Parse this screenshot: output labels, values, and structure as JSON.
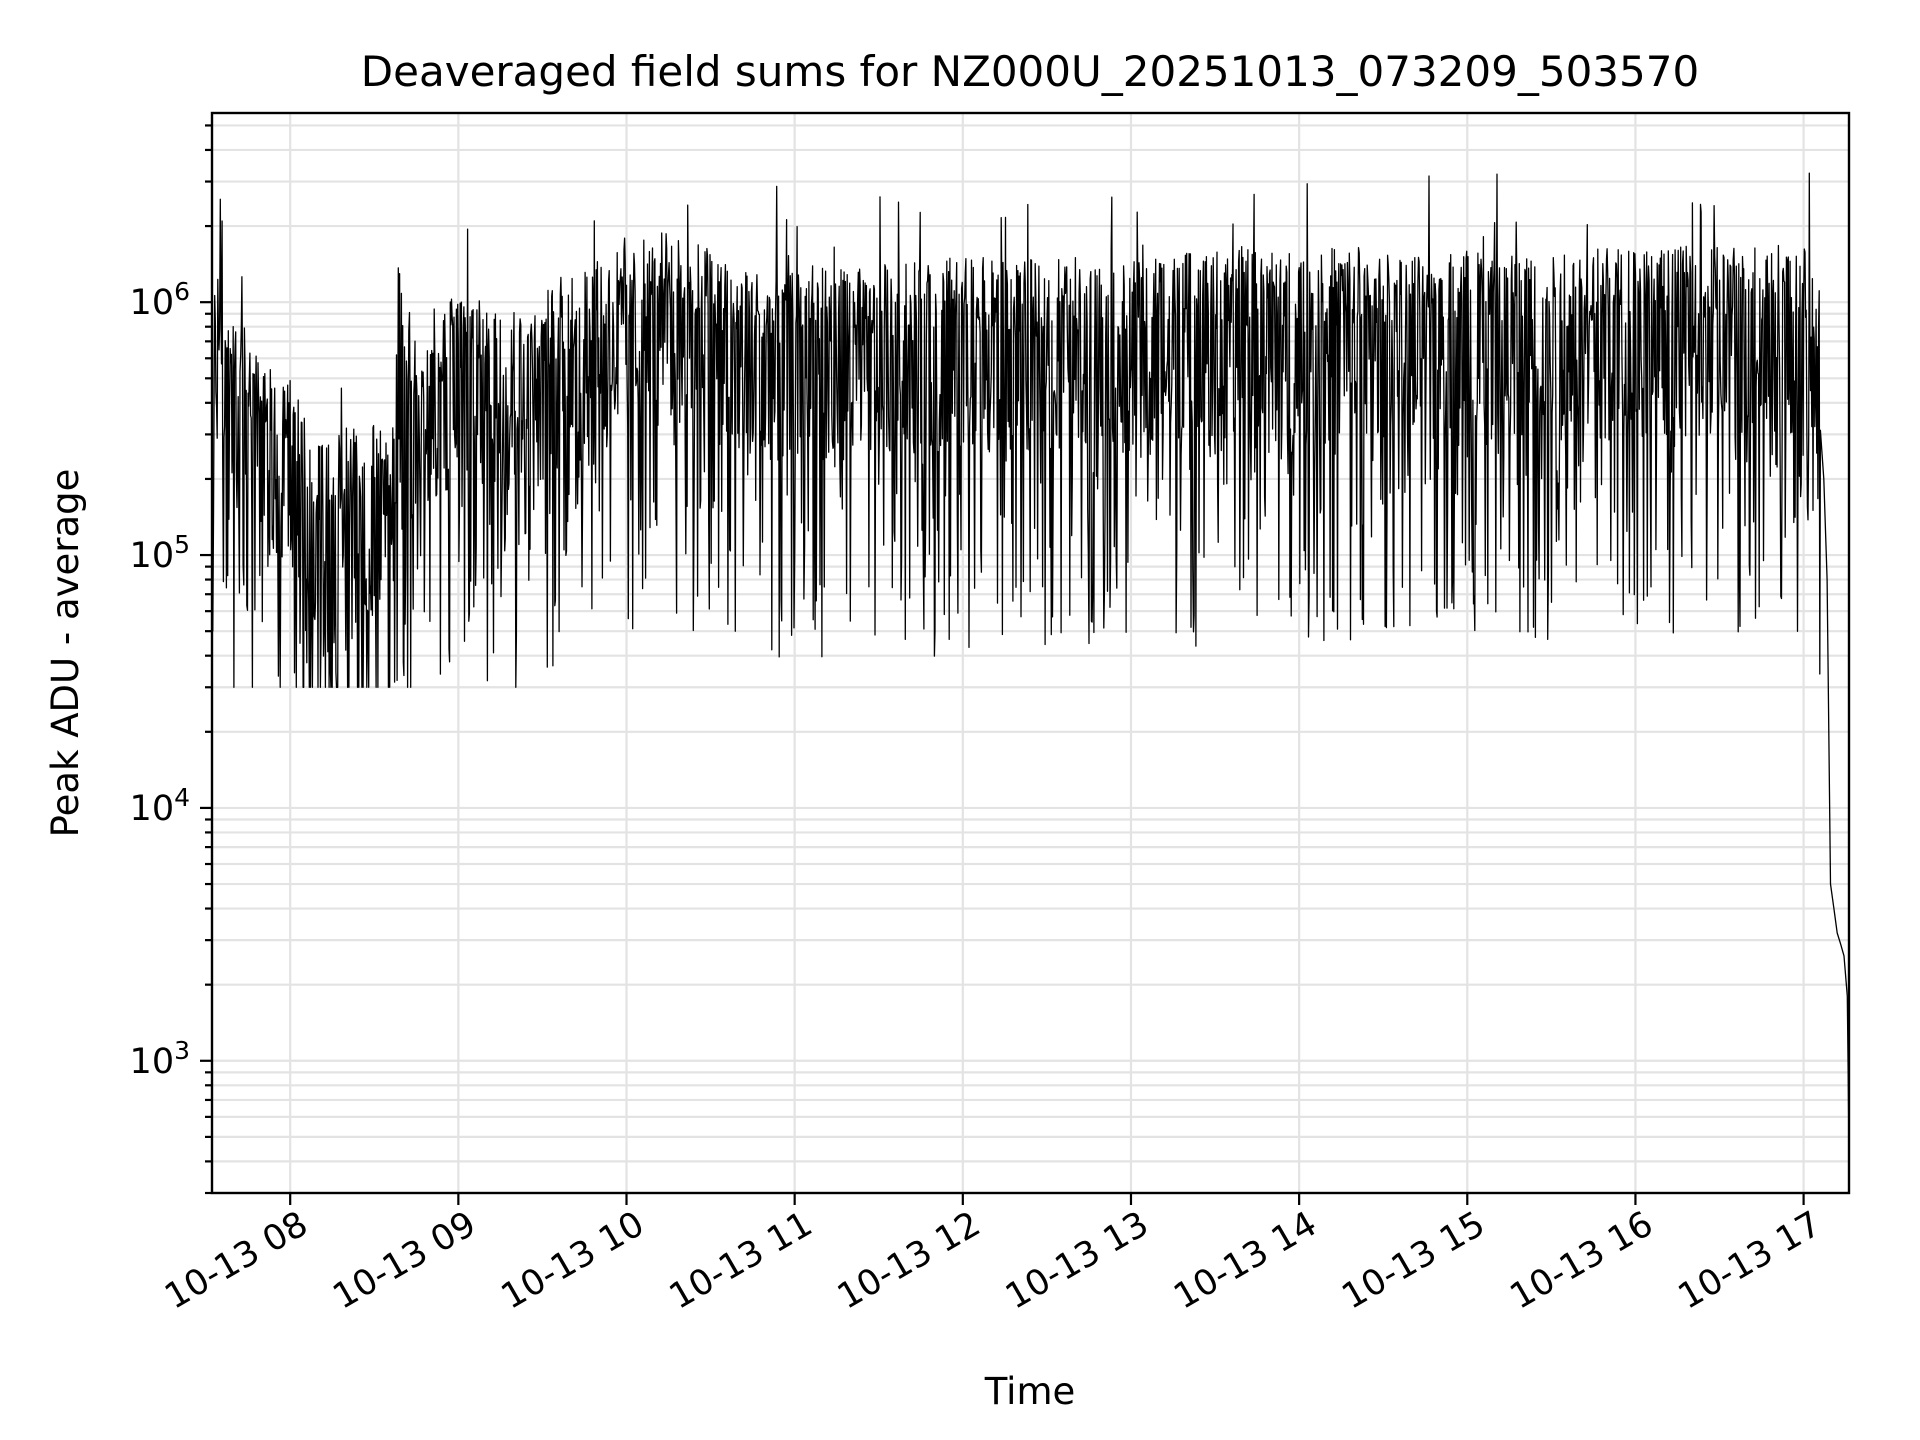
{
  "chart_data": {
    "type": "line",
    "title": "Deaveraged field sums for NZ000U_20251013_073209_503570",
    "xlabel": "Time",
    "ylabel": "Peak ADU - average",
    "yscale": "log",
    "ylim": [
      300,
      5600000
    ],
    "xlim_hours": [
      7.535,
      17.27
    ],
    "grid": true,
    "line_color": "#000000",
    "grid_color": "#e3e3e3",
    "x_ticks": [
      {
        "hour": 8,
        "label": "10-13 08"
      },
      {
        "hour": 9,
        "label": "10-13 09"
      },
      {
        "hour": 10,
        "label": "10-13 10"
      },
      {
        "hour": 11,
        "label": "10-13 11"
      },
      {
        "hour": 12,
        "label": "10-13 12"
      },
      {
        "hour": 13,
        "label": "10-13 13"
      },
      {
        "hour": 14,
        "label": "10-13 14"
      },
      {
        "hour": 15,
        "label": "10-13 15"
      },
      {
        "hour": 16,
        "label": "10-13 16"
      },
      {
        "hour": 17,
        "label": "10-13 17"
      }
    ],
    "y_ticks": [
      {
        "value": 1000,
        "base": "10",
        "exp": "3"
      },
      {
        "value": 10000,
        "base": "10",
        "exp": "4"
      },
      {
        "value": 100000,
        "base": "10",
        "exp": "5"
      },
      {
        "value": 1000000,
        "base": "10",
        "exp": "6"
      }
    ],
    "series": [
      {
        "name": "Peak ADU - average",
        "x_hours": [
          7.54,
          7.6,
          7.7,
          7.8,
          7.9,
          8.0,
          8.1,
          8.2,
          8.3,
          8.4,
          8.5,
          8.6,
          8.65,
          8.7,
          8.8,
          8.9,
          9.0,
          9.1,
          9.2,
          9.3,
          9.4,
          9.5,
          9.6,
          9.7,
          9.8,
          9.9,
          10.0,
          10.1,
          10.2,
          10.3,
          10.4,
          10.5,
          10.6,
          10.7,
          10.8,
          10.9,
          11.0,
          11.2,
          11.4,
          11.6,
          11.8,
          12.0,
          12.2,
          12.4,
          12.6,
          12.8,
          13.0,
          13.2,
          13.4,
          13.6,
          13.8,
          14.0,
          14.2,
          14.4,
          14.6,
          14.8,
          15.0,
          15.2,
          15.4,
          15.6,
          15.8,
          16.0,
          16.2,
          16.4,
          16.6,
          16.8,
          17.0,
          17.05,
          17.1,
          17.12,
          17.14,
          17.16,
          17.18,
          17.2,
          17.22,
          17.24,
          17.26,
          17.27
        ],
        "y_typical": [
          700000,
          550000,
          400000,
          320000,
          280000,
          260000,
          160000,
          130000,
          150000,
          170000,
          160000,
          130000,
          900000,
          380000,
          420000,
          480000,
          520000,
          550000,
          520000,
          500000,
          450000,
          520000,
          600000,
          650000,
          700000,
          750000,
          800000,
          850000,
          900000,
          950000,
          850000,
          800000,
          750000,
          700000,
          650000,
          650000,
          700000,
          650000,
          650000,
          700000,
          700000,
          750000,
          700000,
          700000,
          750000,
          750000,
          700000,
          750000,
          750000,
          800000,
          800000,
          750000,
          800000,
          800000,
          750000,
          800000,
          800000,
          800000,
          800000,
          800000,
          800000,
          800000,
          800000,
          800000,
          800000,
          850000,
          800000,
          700000,
          550000,
          200000,
          80000,
          5000,
          4000,
          3200,
          2900,
          2600,
          1800,
          450
        ],
        "y_min_approx": 30000,
        "y_max_approx": 3600000
      }
    ]
  }
}
